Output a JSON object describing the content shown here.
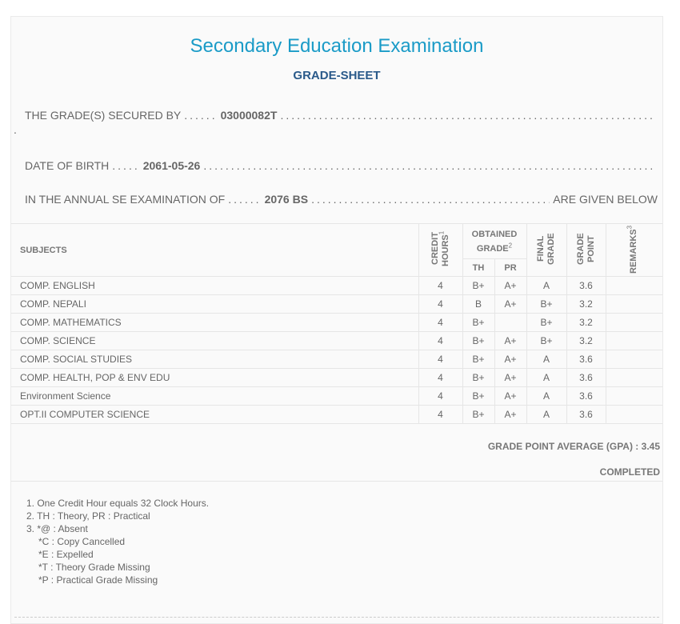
{
  "header": {
    "title": "Secondary Education Examination",
    "subtitle": "GRADE-SHEET"
  },
  "info": {
    "secured_by_label": "THE GRADE(S) SECURED BY",
    "symbol_no": "03000082T",
    "dob_label": "DATE OF BIRTH",
    "dob": "2061-05-26",
    "exam_label": "IN THE ANNUAL SE EXAMINATION OF",
    "exam_year": "2076 BS",
    "exam_suffix": "ARE GIVEN BELOW"
  },
  "table": {
    "headers": {
      "subjects": "SUBJECTS",
      "credit_hours": "CREDIT HOURS",
      "credit_sup": "1",
      "obtained_grade": "OBTAINED GRADE",
      "obtained_sup": "2",
      "th": "TH",
      "pr": "PR",
      "final_grade": "FINAL GRADE",
      "grade_point": "GRADE POINT",
      "remarks": "REMARKS",
      "remarks_sup": "3"
    },
    "rows": [
      {
        "subject": "COMP. ENGLISH",
        "credit": "4",
        "th": "B+",
        "pr": "A+",
        "final": "A",
        "gp": "3.6",
        "remarks": ""
      },
      {
        "subject": "COMP. NEPALI",
        "credit": "4",
        "th": "B",
        "pr": "A+",
        "final": "B+",
        "gp": "3.2",
        "remarks": ""
      },
      {
        "subject": "COMP. MATHEMATICS",
        "credit": "4",
        "th": "B+",
        "pr": "",
        "final": "B+",
        "gp": "3.2",
        "remarks": ""
      },
      {
        "subject": "COMP. SCIENCE",
        "credit": "4",
        "th": "B+",
        "pr": "A+",
        "final": "B+",
        "gp": "3.2",
        "remarks": ""
      },
      {
        "subject": "COMP. SOCIAL STUDIES",
        "credit": "4",
        "th": "B+",
        "pr": "A+",
        "final": "A",
        "gp": "3.6",
        "remarks": ""
      },
      {
        "subject": "COMP. HEALTH, POP & ENV EDU",
        "credit": "4",
        "th": "B+",
        "pr": "A+",
        "final": "A",
        "gp": "3.6",
        "remarks": ""
      },
      {
        "subject": "Environment Science",
        "credit": "4",
        "th": "B+",
        "pr": "A+",
        "final": "A",
        "gp": "3.6",
        "remarks": ""
      },
      {
        "subject": "OPT.II COMPUTER SCIENCE",
        "credit": "4",
        "th": "B+",
        "pr": "A+",
        "final": "A",
        "gp": "3.6",
        "remarks": ""
      }
    ]
  },
  "summary": {
    "gpa_label": "GRADE POINT AVERAGE (GPA) :",
    "gpa": "3.45",
    "status": "COMPLETED"
  },
  "notes": [
    "1. One Credit Hour equals 32 Clock Hours.",
    "2. TH : Theory, PR : Practical",
    "3. *@ : Absent",
    "*C : Copy Cancelled",
    "*E : Expelled",
    "*T : Theory Grade Missing",
    "*P : Practical Grade Missing"
  ]
}
